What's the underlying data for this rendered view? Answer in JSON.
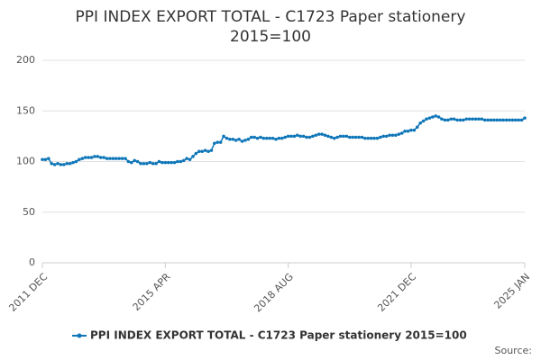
{
  "chart_data": {
    "type": "line",
    "title_lines": [
      "PPI INDEX EXPORT TOTAL - C1723 Paper stationery",
      "2015=100"
    ],
    "source": "Source:",
    "categories": [
      "2011 DEC",
      null,
      null,
      null,
      null,
      null,
      null,
      null,
      null,
      null,
      null,
      null,
      null,
      null,
      null,
      null,
      null,
      null,
      null,
      null,
      null,
      null,
      null,
      null,
      null,
      null,
      null,
      null,
      null,
      null,
      null,
      null,
      null,
      null,
      null,
      null,
      null,
      null,
      null,
      null,
      "2015 APR",
      null,
      null,
      null,
      null,
      null,
      null,
      null,
      null,
      null,
      null,
      null,
      null,
      null,
      null,
      null,
      null,
      null,
      null,
      null,
      null,
      null,
      null,
      null,
      null,
      null,
      null,
      null,
      null,
      null,
      null,
      null,
      null,
      null,
      null,
      null,
      null,
      null,
      null,
      null,
      "2018 AUG",
      null,
      null,
      null,
      null,
      null,
      null,
      null,
      null,
      null,
      null,
      null,
      null,
      null,
      null,
      null,
      null,
      null,
      null,
      null,
      null,
      null,
      null,
      null,
      null,
      null,
      null,
      null,
      null,
      null,
      null,
      null,
      null,
      null,
      null,
      null,
      null,
      null,
      null,
      null,
      "2021 DEC",
      null,
      null,
      null,
      null,
      null,
      null,
      null,
      null,
      null,
      null,
      null,
      null,
      null,
      null,
      null,
      null,
      null,
      null,
      null,
      null,
      null,
      null,
      null,
      null,
      null,
      null,
      null,
      null,
      null,
      null,
      null,
      null,
      null,
      null,
      null,
      null,
      "2025 JAN"
    ],
    "series": [
      {
        "name": "PPI INDEX EXPORT TOTAL - C1723 Paper stationery 2015=100",
        "color": "#0e76b8",
        "values": [
          102,
          102,
          103,
          98,
          97,
          98,
          97,
          97,
          98,
          98,
          99,
          100,
          102,
          103,
          104,
          104,
          104,
          105,
          105,
          104,
          104,
          103,
          103,
          103,
          103,
          103,
          103,
          103,
          100,
          99,
          101,
          100,
          98,
          98,
          98,
          99,
          98,
          98,
          100,
          99,
          99,
          99,
          99,
          99,
          100,
          100,
          101,
          103,
          102,
          105,
          108,
          110,
          110,
          111,
          110,
          111,
          118,
          119,
          119,
          125,
          123,
          122,
          122,
          121,
          122,
          120,
          121,
          122,
          124,
          124,
          123,
          124,
          123,
          123,
          123,
          123,
          122,
          123,
          123,
          124,
          125,
          125,
          125,
          126,
          125,
          125,
          124,
          124,
          125,
          126,
          127,
          127,
          126,
          125,
          124,
          123,
          124,
          125,
          125,
          125,
          124,
          124,
          124,
          124,
          124,
          123,
          123,
          123,
          123,
          123,
          124,
          125,
          125,
          126,
          126,
          126,
          127,
          128,
          130,
          130,
          131,
          131,
          134,
          138,
          140,
          142,
          143,
          144,
          145,
          144,
          142,
          141,
          141,
          142,
          142,
          141,
          141,
          141,
          142,
          142,
          142,
          142,
          142,
          142,
          141,
          141,
          141,
          141,
          141,
          141,
          141,
          141,
          141,
          141,
          141,
          141,
          141,
          143
        ]
      }
    ],
    "ylim": [
      0,
      200
    ],
    "yticks": [
      0,
      50,
      100,
      150,
      200
    ],
    "grid": true
  }
}
